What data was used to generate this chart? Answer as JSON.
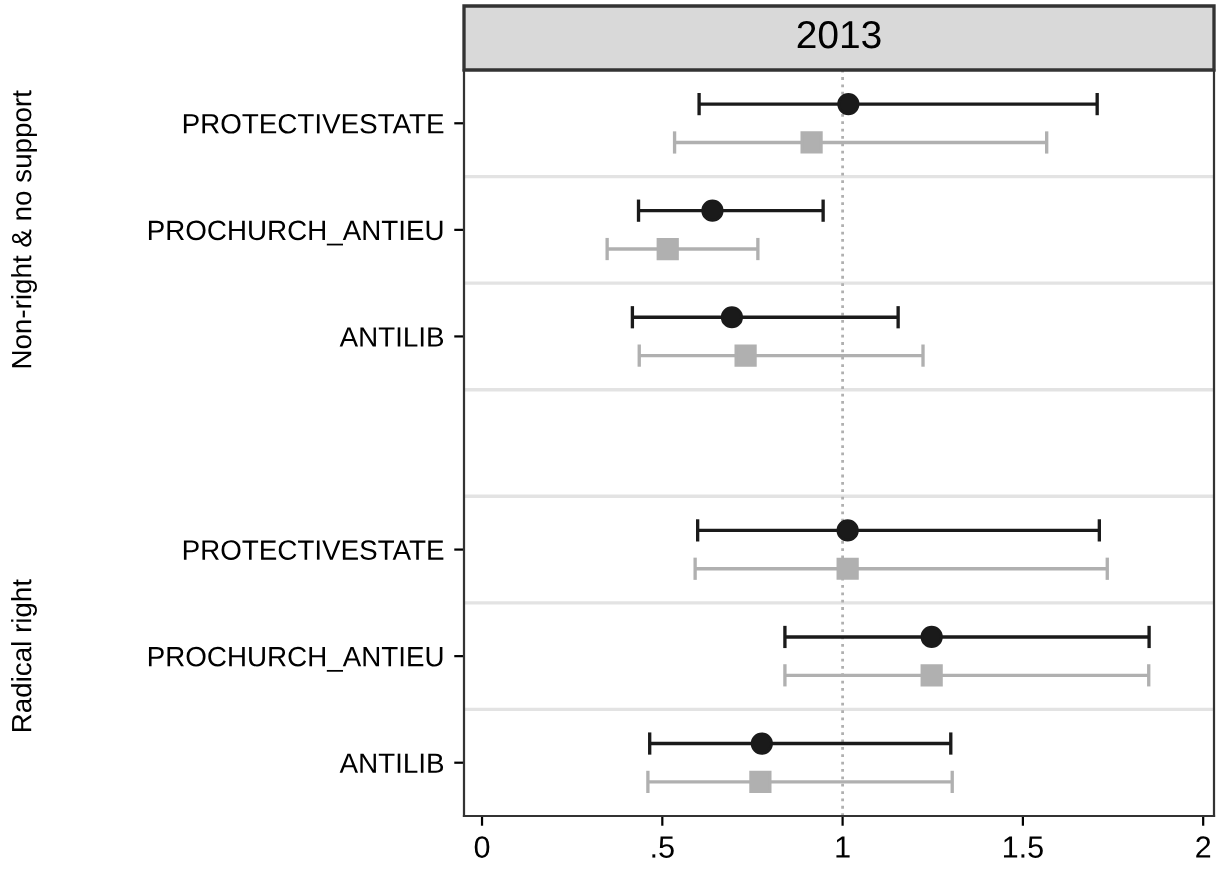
{
  "chart_data": {
    "type": "scatter",
    "orientation": "horizontal",
    "title": "2013",
    "categories": [
      "PROTECTIVESTATE",
      "PROCHURCH_ANTIEU",
      "ANTILIB",
      null,
      "PROTECTIVESTATE",
      "PROCHURCH_ANTIEU",
      "ANTILIB"
    ],
    "series": [
      {
        "color": "#1a1a1a",
        "marker": "circle",
        "values": [
          1.016,
          0.639,
          0.693,
          null,
          1.014,
          1.247,
          0.776
        ],
        "errors": [
          [
            0.602,
            1.706
          ],
          [
            0.434,
            0.946
          ],
          [
            0.417,
            1.154
          ],
          null,
          [
            0.598,
            1.712
          ],
          [
            0.84,
            1.85
          ],
          [
            0.465,
            1.3
          ]
        ]
      },
      {
        "color": "#b0b0b0",
        "marker": "square",
        "values": [
          0.914,
          0.515,
          0.731,
          null,
          1.014,
          1.247,
          0.772
        ],
        "errors": [
          [
            0.534,
            1.566
          ],
          [
            0.347,
            0.765
          ],
          [
            0.436,
            1.223
          ],
          null,
          [
            0.591,
            1.734
          ],
          [
            0.84,
            1.849
          ],
          [
            0.46,
            1.304
          ]
        ]
      }
    ],
    "annotations": [
      "Non-right & no support",
      "Radical right"
    ],
    "xlim": [
      -0.05,
      2.03
    ],
    "xticks": [
      0,
      {
        "value": 0.5,
        "label": ".5"
      },
      1,
      1.5,
      2
    ],
    "ref_lines": [
      {
        "axis": "x",
        "value": 1,
        "color": "#b0b0b0",
        "line_style": "dotted"
      }
    ],
    "grid": "y"
  }
}
